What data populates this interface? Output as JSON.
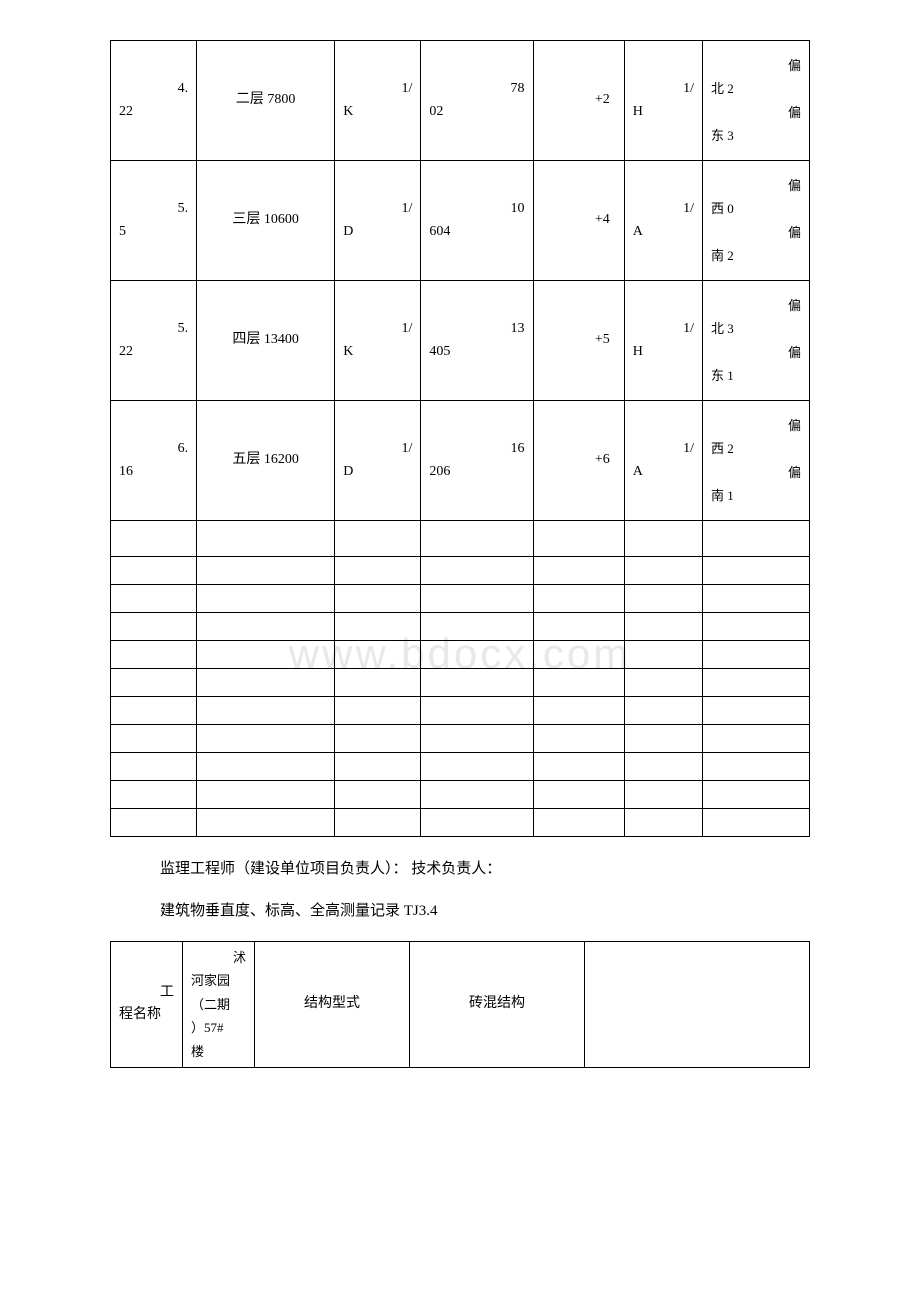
{
  "watermark": "www.bdocx.com",
  "table1": {
    "rows": [
      {
        "c1_top": "4.",
        "c1_bottom": "22",
        "c2": "二层 7800",
        "c3_top": "1/",
        "c3_bottom": "K",
        "c4_top": "78",
        "c4_bottom": "02",
        "c5": "+2",
        "c6_top": "1/",
        "c6_bottom": "H",
        "c7_l1": "偏",
        "c7_l2": "北 2",
        "c7_l3": "偏",
        "c7_l4": "东 3"
      },
      {
        "c1_top": "5.",
        "c1_bottom": "5",
        "c2": "三层 10600",
        "c3_top": "1/",
        "c3_bottom": "D",
        "c4_top": "10",
        "c4_bottom": "604",
        "c5": "+4",
        "c6_top": "1/",
        "c6_bottom": "A",
        "c7_l1": "偏",
        "c7_l2": "西 0",
        "c7_l3": "偏",
        "c7_l4": "南 2"
      },
      {
        "c1_top": "5.",
        "c1_bottom": "22",
        "c2": "四层 13400",
        "c3_top": "1/",
        "c3_bottom": "K",
        "c4_top": "13",
        "c4_bottom": "405",
        "c5": "+5",
        "c6_top": "1/",
        "c6_bottom": "H",
        "c7_l1": "偏",
        "c7_l2": "北 3",
        "c7_l3": "偏",
        "c7_l4": "东 1"
      },
      {
        "c1_top": "6.",
        "c1_bottom": "16",
        "c2": "五层 16200",
        "c3_top": "1/",
        "c3_bottom": "D",
        "c4_top": "16",
        "c4_bottom": "206",
        "c5": "+6",
        "c6_top": "1/",
        "c6_bottom": "A",
        "c7_l1": "偏",
        "c7_l2": "西 2",
        "c7_l3": "偏",
        "c7_l4": "南 1"
      }
    ],
    "empty_row_count": 11,
    "colors": {
      "border": "#000000",
      "text": "#000000",
      "background": "#ffffff"
    }
  },
  "paragraph1": "监理工程师（建设单位项目负责人）： 技术负责人：",
  "paragraph2": "建筑物垂直度、标高、全高测量记录 TJ3.4",
  "table2": {
    "row": {
      "c1_l1": "工",
      "c1_l2": "程名称",
      "c2_l1": "沭",
      "c2_l2": "河家园",
      "c2_l3": "（二期",
      "c2_l4": "）57#",
      "c2_l5": "楼",
      "c3": "结构型式",
      "c4": "砖混结构",
      "c5": ""
    }
  }
}
